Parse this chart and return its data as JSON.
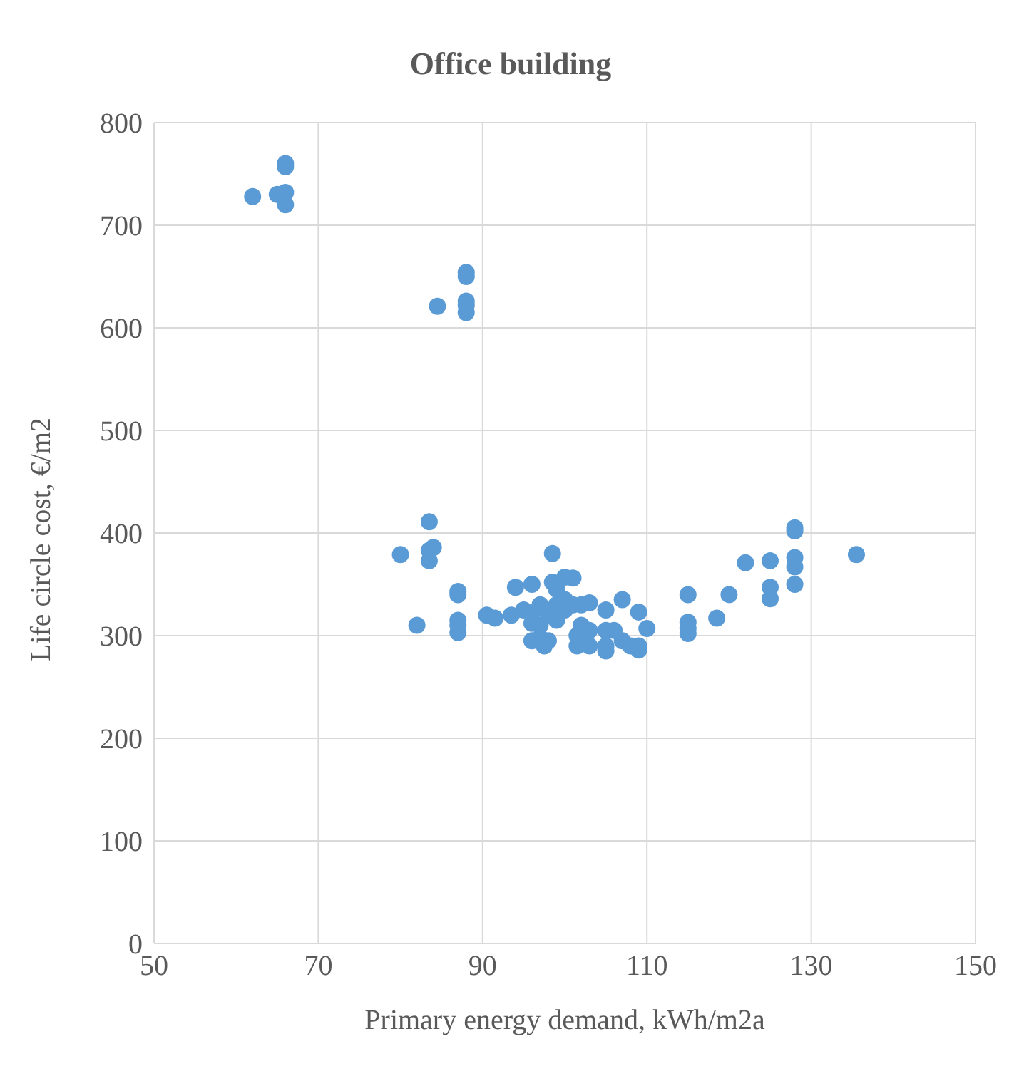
{
  "chart_data": {
    "type": "scatter",
    "title": "Office building",
    "xlabel": "Primary energy demand, kWh/m2a",
    "ylabel": "Life circle cost, €/m2",
    "x": [
      62,
      65,
      66,
      66,
      66,
      66,
      84.5,
      88,
      88,
      88,
      88,
      88,
      80,
      83.5,
      84,
      83.5,
      83.5,
      82,
      87,
      87,
      87,
      87,
      87,
      90.5,
      91.5,
      93.5,
      94,
      95,
      96,
      96,
      96,
      96,
      97,
      97,
      97,
      97.5,
      98,
      98,
      98.5,
      98.5,
      99,
      99,
      99,
      100,
      100,
      100,
      101,
      101,
      101.5,
      101.5,
      102,
      102,
      103,
      103,
      103,
      105,
      105,
      105,
      105,
      106,
      107,
      107,
      108,
      109,
      109,
      109,
      110,
      115,
      115,
      115,
      115,
      118.5,
      120,
      122,
      125,
      125,
      125,
      128,
      128,
      128,
      128,
      128,
      135.5
    ],
    "series": [
      {
        "color": "#5b9bd5",
        "values": [
          728,
          730,
          760,
          757,
          732,
          720,
          621,
          654,
          650,
          626,
          622,
          615,
          379,
          411,
          386,
          383,
          373,
          310,
          343,
          340,
          315,
          310,
          303,
          320,
          317,
          320,
          347,
          325,
          350,
          322,
          312,
          295,
          330,
          310,
          298,
          290,
          320,
          295,
          380,
          352,
          345,
          330,
          315,
          357,
          335,
          325,
          356,
          330,
          300,
          290,
          330,
          310,
          332,
          305,
          290,
          325,
          305,
          290,
          285,
          305,
          335,
          295,
          290,
          323,
          290,
          286,
          307,
          340,
          313,
          307,
          302,
          317,
          340,
          371,
          373,
          347,
          336,
          405,
          402,
          376,
          367,
          350,
          379
        ]
      }
    ],
    "xlim": [
      50,
      150
    ],
    "xticks": [
      50,
      70,
      90,
      110,
      130,
      150
    ],
    "ylim": [
      0,
      800
    ],
    "yticks": [
      0,
      100,
      200,
      300,
      400,
      500,
      600,
      700,
      800
    ],
    "grid": true,
    "marker": "circle"
  }
}
